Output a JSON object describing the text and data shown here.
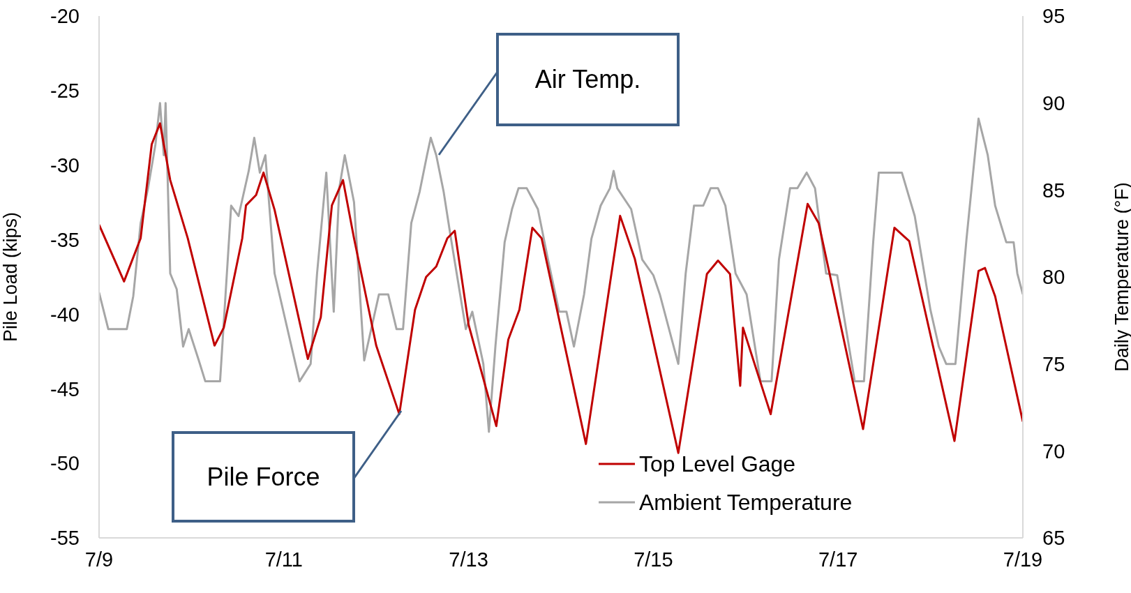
{
  "chart_data": {
    "type": "line",
    "ylabel": "Pile Load (kips)",
    "y2label": "Daily Temperature  (°F)",
    "xlim": [
      "--07-09",
      "--07-19"
    ],
    "xticks": [
      {
        "value": "--07-09",
        "label": "7/9"
      },
      {
        "value": "--07-11",
        "label": "7/11"
      },
      {
        "value": "--07-13",
        "label": "7/13"
      },
      {
        "value": "--07-15",
        "label": "7/15"
      },
      {
        "value": "--07-17",
        "label": "7/17"
      },
      {
        "value": "--07-19",
        "label": "7/19"
      }
    ],
    "ylim": [
      -55,
      -20
    ],
    "yticks": [
      -55,
      -50,
      -45,
      -40,
      -35,
      -30,
      -25,
      -20
    ],
    "y2lim": [
      65,
      95
    ],
    "y2ticks": [
      65,
      70,
      75,
      80,
      85,
      90,
      95
    ],
    "legend": "bottom",
    "marker": "none",
    "line_style": "solid",
    "annotations": [
      "Air Temp.",
      "Pile Force"
    ],
    "series": [
      {
        "name": "Top Level Gage",
        "color": "#c00000",
        "x": [
          "--07-09T00:00",
          "--07-09T06:29",
          "--07-09T10:48",
          "--07-09T13:41",
          "--07-09T15:50",
          "--07-09T18:29",
          "--07-09T23:02",
          "--07-10T06:00",
          "--07-10T08:24",
          "--07-10T13:12",
          "--07-10T14:10",
          "--07-10T16:48",
          "--07-10T18:43",
          "--07-10T21:36",
          "--07-11T06:14",
          "--07-11T09:36",
          "--07-11T12:29",
          "--07-11T15:22",
          "--07-11T18:14",
          "--07-12T00:00",
          "--07-12T06:00",
          "--07-12T10:05",
          "--07-12T12:58",
          "--07-12T15:36",
          "--07-12T18:29",
          "--07-12T20:24",
          "--07-13T00:00",
          "--07-13T07:12",
          "--07-13T10:19",
          "--07-13T13:12",
          "--07-13T16:34",
          "--07-13T18:58",
          "--07-14T06:29",
          "--07-14T15:22",
          "--07-14T19:12",
          "--07-15T06:29",
          "--07-15T13:55",
          "--07-15T16:48",
          "--07-15T19:55",
          "--07-15T22:34",
          "--07-15T23:17",
          "--07-16T06:29",
          "--07-16T16:05",
          "--07-16T18:58",
          "--07-17T06:29",
          "--07-17T14:38",
          "--07-17T18:29",
          "--07-18T06:14",
          "--07-18T12:29",
          "--07-18T14:10",
          "--07-18T16:48",
          "--07-19T00:00"
        ],
        "values": [
          -34.0,
          -37.8,
          -34.9,
          -28.6,
          -27.2,
          -31.0,
          -34.9,
          -42.1,
          -40.9,
          -34.9,
          -32.7,
          -32.0,
          -30.5,
          -33.0,
          -43.0,
          -40.2,
          -32.7,
          -31.0,
          -34.9,
          -42.1,
          -46.7,
          -39.7,
          -37.5,
          -36.8,
          -34.9,
          -34.4,
          -40.7,
          -47.5,
          -41.7,
          -39.7,
          -34.2,
          -34.9,
          -48.7,
          -33.4,
          -36.3,
          -49.3,
          -37.3,
          -36.4,
          -37.3,
          -44.8,
          -40.9,
          -46.7,
          -32.6,
          -33.9,
          -47.7,
          -34.2,
          -35.1,
          -48.5,
          -37.1,
          -36.9,
          -38.8,
          -47.2
        ]
      },
      {
        "name": "Ambient Temperature",
        "color": "#a6a6a6",
        "axis": "y2",
        "x": [
          "--07-09T00:00",
          "--07-09T02:24",
          "--07-09T07:12",
          "--07-09T08:53",
          "--07-09T10:48",
          "--07-09T12:43",
          "--07-09T14:38",
          "--07-09T15:50",
          "--07-09T16:48",
          "--07-09T17:17",
          "--07-09T18:29",
          "--07-09T20:10",
          "--07-09T21:50",
          "--07-09T23:17",
          "--07-10T01:55",
          "--07-10T03:36",
          "--07-10T07:26",
          "--07-10T10:19",
          "--07-10T12:14",
          "--07-10T14:53",
          "--07-10T16:19",
          "--07-10T17:46",
          "--07-10T19:12",
          "--07-10T21:36",
          "--07-11T04:05",
          "--07-11T06:58",
          "--07-11T08:38",
          "--07-11T11:02",
          "--07-11T12:58",
          "--07-11T14:24",
          "--07-11T15:50",
          "--07-11T18:14",
          "--07-11T20:53",
          "--07-12T00:43",
          "--07-12T03:07",
          "--07-12T05:17",
          "--07-12T06:58",
          "--07-12T09:07",
          "--07-12T11:17",
          "--07-12T13:12",
          "--07-12T14:10",
          "--07-12T15:36",
          "--07-12T17:31",
          "--07-12T19:26",
          "--07-12T23:17",
          "--07-13T00:58",
          "--07-13T03:50",
          "--07-13T05:17",
          "--07-13T06:58",
          "--07-13T09:22",
          "--07-13T11:17",
          "--07-13T12:58",
          "--07-13T15:07",
          "--07-13T18:00",
          "--07-13T20:38",
          "--07-13T23:31",
          "--07-14T01:26",
          "--07-14T03:22",
          "--07-14T06:00",
          "--07-14T07:55",
          "--07-14T10:19",
          "--07-14T12:43",
          "--07-14T13:41",
          "--07-14T14:38",
          "--07-14T18:14",
          "--07-14T21:07",
          "--07-15T00:00",
          "--07-15T01:41",
          "--07-15T06:29",
          "--07-15T08:24",
          "--07-15T10:34",
          "--07-15T12:58",
          "--07-15T14:53",
          "--07-15T16:48",
          "--07-15T18:43",
          "--07-15T21:22",
          "--07-16T00:14",
          "--07-16T03:50",
          "--07-16T06:43",
          "--07-16T08:38",
          "--07-16T11:31",
          "--07-16T13:26",
          "--07-16T15:50",
          "--07-16T18:00",
          "--07-16T20:53",
          "--07-16T23:46",
          "--07-17T04:19",
          "--07-17T06:43",
          "--07-17T09:07",
          "--07-17T10:34",
          "--07-17T16:34",
          "--07-17T19:55",
          "--07-18T00:00",
          "--07-18T02:10",
          "--07-18T04:05",
          "--07-18T06:29",
          "--07-18T09:22",
          "--07-18T12:29",
          "--07-18T14:53",
          "--07-18T16:48",
          "--07-18T19:41",
          "--07-18T21:36",
          "--07-18T22:34",
          "--07-19T00:00"
        ],
        "values": [
          79.1,
          77.0,
          77.0,
          78.9,
          83.1,
          85.1,
          87.6,
          90.0,
          87.0,
          90.0,
          80.2,
          79.3,
          76.0,
          77.0,
          75.2,
          74.0,
          74.0,
          84.1,
          83.5,
          86.1,
          88.0,
          86.0,
          87.0,
          80.2,
          74.0,
          75.0,
          80.2,
          86.0,
          78.0,
          85.1,
          87.0,
          84.3,
          75.2,
          79.0,
          79.0,
          77.0,
          77.0,
          83.1,
          84.9,
          87.0,
          88.0,
          87.0,
          84.9,
          82.2,
          77.0,
          78.0,
          75.0,
          71.1,
          76.0,
          82.0,
          83.9,
          85.1,
          85.1,
          83.9,
          81.0,
          78.0,
          78.0,
          76.0,
          79.0,
          82.2,
          84.1,
          85.1,
          86.1,
          85.1,
          83.9,
          81.0,
          80.1,
          79.0,
          75.0,
          80.2,
          84.1,
          84.1,
          85.1,
          85.1,
          84.1,
          80.2,
          79.0,
          74.0,
          74.0,
          81.0,
          85.1,
          85.1,
          86.0,
          85.1,
          80.2,
          80.1,
          74.0,
          74.0,
          82.0,
          86.0,
          86.0,
          83.5,
          78.1,
          76.0,
          75.0,
          75.0,
          82.2,
          89.1,
          87.0,
          84.1,
          82.0,
          82.0,
          80.2,
          79.0
        ]
      }
    ]
  }
}
